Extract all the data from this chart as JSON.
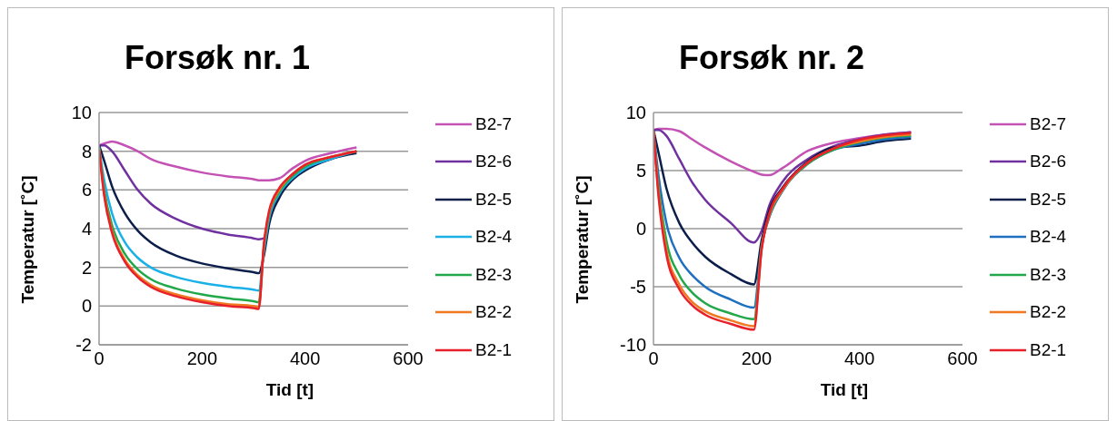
{
  "chart_data": [
    {
      "type": "line",
      "title": "Forsøk nr. 1",
      "xlabel": "Tid [t]",
      "ylabel": "Temperatur [˚C]",
      "xlim": [
        0,
        600
      ],
      "xticks": [
        0,
        200,
        400,
        600
      ],
      "ylim": [
        -2,
        10
      ],
      "yticks": [
        -2,
        0,
        2,
        4,
        6,
        8,
        10
      ],
      "grid": "y",
      "legend": "right",
      "marker": "none",
      "line_style": "solid",
      "x": [
        0,
        10,
        25,
        50,
        75,
        100,
        150,
        200,
        250,
        300,
        310,
        320,
        330,
        350,
        375,
        400,
        450,
        500
      ],
      "series": [
        {
          "name": "B2-7",
          "color": "#c452b4",
          "values": [
            8.3,
            8.4,
            8.5,
            8.3,
            8.0,
            7.6,
            7.2,
            6.9,
            6.7,
            6.55,
            6.5,
            6.5,
            6.5,
            6.6,
            7.1,
            7.5,
            7.9,
            8.2
          ]
        },
        {
          "name": "B2-6",
          "color": "#7030a0",
          "values": [
            8.3,
            8.3,
            8.0,
            7.0,
            6.0,
            5.3,
            4.5,
            4.0,
            3.7,
            3.5,
            3.45,
            3.5,
            4.5,
            5.8,
            6.6,
            7.1,
            7.6,
            8.0
          ]
        },
        {
          "name": "B2-5",
          "color": "#0c1e4a",
          "values": [
            8.3,
            7.5,
            6.2,
            4.8,
            3.9,
            3.3,
            2.6,
            2.2,
            1.95,
            1.75,
            1.7,
            2.6,
            4.2,
            5.6,
            6.5,
            7.0,
            7.6,
            7.9
          ]
        },
        {
          "name": "B2-4",
          "color": "#1ab0e8",
          "values": [
            8.2,
            6.5,
            4.8,
            3.3,
            2.5,
            2.0,
            1.5,
            1.2,
            1.0,
            0.85,
            0.8,
            2.8,
            4.5,
            5.8,
            6.6,
            7.1,
            7.6,
            8.0
          ]
        },
        {
          "name": "B2-3",
          "color": "#21a84a",
          "values": [
            8.2,
            6.0,
            4.2,
            2.7,
            1.9,
            1.4,
            0.9,
            0.6,
            0.4,
            0.25,
            0.2,
            3.0,
            4.7,
            5.9,
            6.7,
            7.2,
            7.7,
            8.0
          ]
        },
        {
          "name": "B2-2",
          "color": "#f07820",
          "values": [
            8.1,
            5.8,
            3.9,
            2.4,
            1.6,
            1.1,
            0.6,
            0.3,
            0.1,
            0.0,
            -0.05,
            3.1,
            4.8,
            6.0,
            6.8,
            7.3,
            7.7,
            8.0
          ]
        },
        {
          "name": "B2-1",
          "color": "#e8202a",
          "values": [
            8.1,
            5.7,
            3.8,
            2.3,
            1.5,
            1.0,
            0.5,
            0.2,
            0.0,
            -0.1,
            -0.15,
            3.2,
            4.9,
            6.1,
            6.8,
            7.3,
            7.7,
            8.0
          ]
        }
      ]
    },
    {
      "type": "line",
      "title": "Forsøk nr. 2",
      "xlabel": "Tid [t]",
      "ylabel": "Temperatur [˚C]",
      "xlim": [
        0,
        600
      ],
      "xticks": [
        0,
        200,
        400,
        600
      ],
      "ylim": [
        -10,
        10
      ],
      "yticks": [
        -10,
        -5,
        0,
        5,
        10
      ],
      "grid": "y",
      "legend": "right",
      "marker": "none",
      "line_style": "solid",
      "x": [
        0,
        10,
        25,
        50,
        75,
        100,
        150,
        195,
        210,
        225,
        250,
        300,
        350,
        400,
        450,
        500
      ],
      "series": [
        {
          "name": "B2-7",
          "color": "#c452b4",
          "values": [
            8.5,
            8.6,
            8.6,
            8.4,
            7.7,
            7.0,
            5.8,
            4.9,
            4.65,
            4.6,
            5.2,
            6.7,
            7.4,
            7.8,
            8.1,
            8.3
          ]
        },
        {
          "name": "B2-6",
          "color": "#7030a0",
          "values": [
            8.5,
            8.5,
            8.0,
            6.0,
            4.0,
            2.5,
            0.5,
            -1.2,
            -0.2,
            2.0,
            4.0,
            6.0,
            7.1,
            7.7,
            8.1,
            8.3
          ]
        },
        {
          "name": "B2-5",
          "color": "#0c1e4a",
          "values": [
            8.5,
            6.5,
            3.5,
            0.5,
            -1.2,
            -2.4,
            -3.9,
            -4.8,
            -1.0,
            1.6,
            3.5,
            5.8,
            7.0,
            7.15,
            7.55,
            7.75
          ]
        },
        {
          "name": "B2-4",
          "color": "#1f6fc0",
          "values": [
            8.4,
            4.5,
            0.5,
            -2.5,
            -4.0,
            -5.0,
            -6.1,
            -6.8,
            -1.5,
            1.0,
            3.2,
            5.6,
            6.8,
            7.3,
            7.7,
            7.9
          ]
        },
        {
          "name": "B2-3",
          "color": "#21a84a",
          "values": [
            8.4,
            3.5,
            -1.0,
            -4.0,
            -5.5,
            -6.4,
            -7.3,
            -7.8,
            -1.6,
            1.1,
            3.3,
            5.6,
            6.8,
            7.45,
            7.85,
            8.0
          ]
        },
        {
          "name": "B2-2",
          "color": "#f07820",
          "values": [
            8.4,
            3.0,
            -1.8,
            -4.8,
            -6.3,
            -7.1,
            -7.9,
            -8.4,
            -1.7,
            1.2,
            3.3,
            5.7,
            6.9,
            7.5,
            7.9,
            8.1
          ]
        },
        {
          "name": "B2-1",
          "color": "#e8202a",
          "values": [
            8.4,
            2.7,
            -2.2,
            -5.2,
            -6.6,
            -7.4,
            -8.2,
            -8.7,
            -1.8,
            1.3,
            3.4,
            5.7,
            6.9,
            7.65,
            8.05,
            8.25
          ]
        }
      ]
    }
  ]
}
